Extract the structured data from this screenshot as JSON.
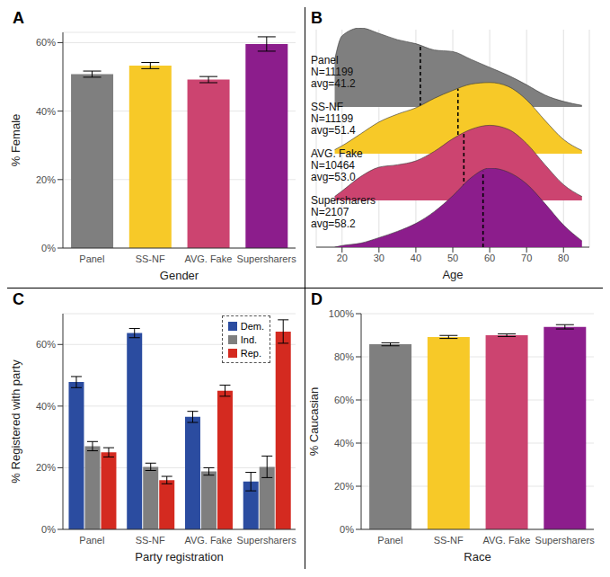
{
  "chart_data": [
    {
      "title": "A",
      "type": "bar",
      "categories": [
        "Panel",
        "SS-NF",
        "AVG. Fake",
        "Supersharers"
      ],
      "values": [
        50.8,
        53.3,
        49.2,
        59.6
      ],
      "errors": [
        0.9,
        0.9,
        0.9,
        2.1
      ],
      "colors": [
        "#7f7f7f",
        "#f7c928",
        "#cc4470",
        "#8c1d8c"
      ],
      "ylim": [
        0,
        63
      ],
      "yticks": [
        {
          "value": 0,
          "label": "0%"
        },
        {
          "value": 20,
          "label": "20%"
        },
        {
          "value": 40,
          "label": "40%"
        },
        {
          "value": 60,
          "label": "60%"
        }
      ],
      "ylabel": "% Female",
      "xlabel": "Gender",
      "grid": true
    },
    {
      "title": "B",
      "type": "ridgeline",
      "x": [
        18,
        20,
        25,
        30,
        35,
        40,
        45,
        50,
        55,
        60,
        65,
        70,
        75,
        80,
        85
      ],
      "xlim": [
        13,
        87
      ],
      "xticks": [
        20,
        30,
        40,
        50,
        60,
        70,
        80
      ],
      "ylim": [
        0,
        1
      ],
      "xlabel": "Age",
      "grid": true,
      "tick_labels": "x",
      "series": [
        {
          "name": "Panel",
          "labels": [
            "N=11199",
            "avg=41.2"
          ],
          "mean": 41.2,
          "color": "#7f7f7f",
          "values": [
            0.6,
            0.9,
            1.0,
            0.93,
            0.85,
            0.8,
            0.72,
            0.7,
            0.6,
            0.5,
            0.4,
            0.28,
            0.15,
            0.07,
            0.02
          ]
        },
        {
          "name": "SS-NF",
          "labels": [
            "N=11199",
            "avg=51.4"
          ],
          "mean": 51.4,
          "color": "#f7c928",
          "values": [
            0.05,
            0.1,
            0.25,
            0.4,
            0.5,
            0.58,
            0.7,
            0.8,
            0.88,
            0.9,
            0.85,
            0.68,
            0.42,
            0.18,
            0.04
          ]
        },
        {
          "name": "AVG. Fake",
          "labels": [
            "N=10464",
            "avg=53.0"
          ],
          "mean": 53.0,
          "color": "#cc4470",
          "values": [
            0.05,
            0.12,
            0.3,
            0.42,
            0.45,
            0.5,
            0.62,
            0.78,
            0.9,
            0.95,
            0.9,
            0.72,
            0.45,
            0.2,
            0.05
          ]
        },
        {
          "name": "Supersharers",
          "labels": [
            "N=2107",
            "avg=58.2"
          ],
          "mean": 58.2,
          "color": "#8c1d8c",
          "values": [
            0.0,
            0.02,
            0.05,
            0.12,
            0.2,
            0.3,
            0.45,
            0.65,
            0.88,
            1.0,
            0.95,
            0.8,
            0.55,
            0.28,
            0.08
          ]
        }
      ]
    },
    {
      "title": "C",
      "type": "bar",
      "categories": [
        "Panel",
        "SS-NF",
        "AVG. Fake",
        "Supersharers"
      ],
      "series": [
        {
          "name": "Dem.",
          "color": "#2b4ca0",
          "values": [
            47.8,
            63.7,
            36.5,
            15.5
          ],
          "errors": [
            1.8,
            1.5,
            1.8,
            3.0
          ]
        },
        {
          "name": "Ind.",
          "color": "#7f7f7f",
          "values": [
            27.0,
            20.3,
            18.8,
            20.3
          ],
          "errors": [
            1.5,
            1.2,
            1.2,
            3.5
          ]
        },
        {
          "name": "Rep.",
          "color": "#d42a20",
          "values": [
            25.0,
            16.0,
            45.0,
            64.2
          ],
          "errors": [
            1.5,
            1.2,
            1.8,
            3.8
          ]
        }
      ],
      "ylim": [
        0,
        70
      ],
      "yticks": [
        {
          "value": 0,
          "label": "0%"
        },
        {
          "value": 20,
          "label": "20%"
        },
        {
          "value": 40,
          "label": "40%"
        },
        {
          "value": 60,
          "label": "60%"
        }
      ],
      "ylabel": "% Registered with party",
      "xlabel": "Party registration",
      "legend": "top-right",
      "grid": true
    },
    {
      "title": "D",
      "type": "bar",
      "categories": [
        "Panel",
        "SS-NF",
        "AVG. Fake",
        "Supersharers"
      ],
      "values": [
        85.8,
        89.2,
        90.0,
        93.9
      ],
      "errors": [
        0.7,
        0.7,
        0.6,
        1.0
      ],
      "colors": [
        "#7f7f7f",
        "#f7c928",
        "#cc4470",
        "#8c1d8c"
      ],
      "ylim": [
        0,
        100
      ],
      "yticks": [
        {
          "value": 0,
          "label": "0%"
        },
        {
          "value": 20,
          "label": "20%"
        },
        {
          "value": 40,
          "label": "40%"
        },
        {
          "value": 60,
          "label": "60%"
        },
        {
          "value": 80,
          "label": "80%"
        },
        {
          "value": 100,
          "label": "100%"
        }
      ],
      "ylabel": "% Caucasian",
      "xlabel": "Race",
      "grid": true
    }
  ]
}
